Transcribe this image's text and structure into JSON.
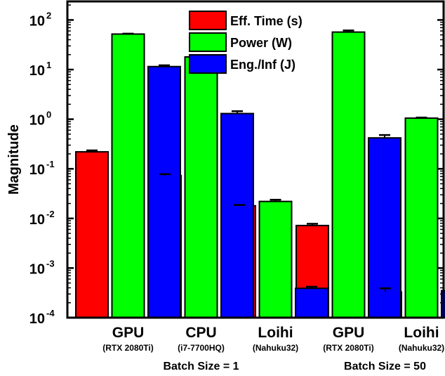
{
  "chart_data": {
    "type": "bar",
    "yscale": "log",
    "ylim": [
      0.0001,
      200
    ],
    "ylabel": "Magnitude",
    "ytick_values": [
      0.0001,
      0.001,
      0.01,
      0.1,
      1,
      10,
      100
    ],
    "ytick_labels": [
      {
        "base": "10",
        "exp": "-4"
      },
      {
        "base": "10",
        "exp": "-3"
      },
      {
        "base": "10",
        "exp": "-2"
      },
      {
        "base": "10",
        "exp": "-1"
      },
      {
        "base": "10",
        "exp": "0"
      },
      {
        "base": "10",
        "exp": "1"
      },
      {
        "base": "10",
        "exp": "2"
      }
    ],
    "categories": [
      {
        "name": "GPU",
        "sub": "(RTX 2080Ti)"
      },
      {
        "name": "CPU",
        "sub": "(i7-7700HQ)"
      },
      {
        "name": "Loihi",
        "sub": "(Nahuku32)"
      },
      {
        "name": "GPU",
        "sub": "(RTX 2080Ti)"
      },
      {
        "name": "Loihi",
        "sub": "(Nahuku32)"
      }
    ],
    "group_labels": [
      "Batch Size = 1",
      "Batch Size = 50"
    ],
    "legend_position": "top-center",
    "series": [
      {
        "name": "Eff. Time (s)",
        "color": "#ff0000",
        "values": [
          0.22,
          0.073,
          0.018,
          0.0072,
          0.00033
        ],
        "errors": [
          0.015,
          0.005,
          0.0007,
          0.0006,
          6e-05
        ]
      },
      {
        "name": "Power (W)",
        "color": "#00ff00",
        "values": [
          52,
          18,
          0.022,
          57,
          1.05
        ],
        "errors": [
          1,
          1,
          0.0018,
          4.5,
          0.03
        ]
      },
      {
        "name": "Eng./Inf (J)",
        "color": "#0000ff",
        "values": [
          11.5,
          1.3,
          0.00039,
          0.42,
          0.00035
        ],
        "errors": [
          0.7,
          0.15,
          3e-05,
          0.06,
          7e-05
        ]
      }
    ]
  }
}
